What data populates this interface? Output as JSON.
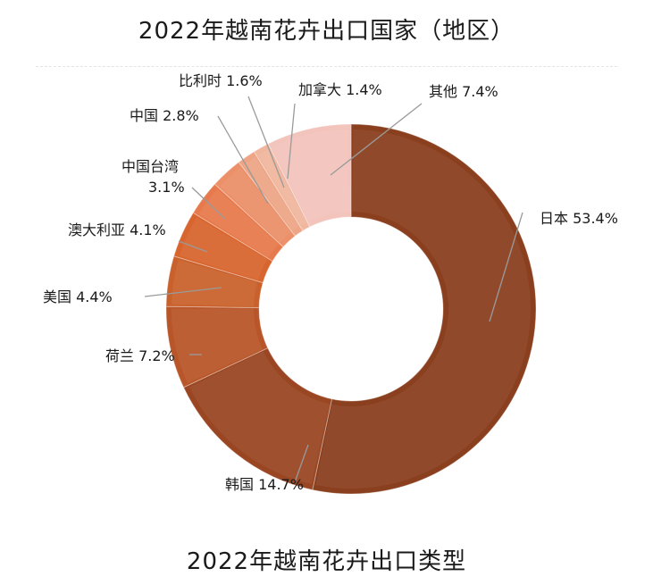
{
  "title": "2022年越南花卉出口国家（地区）",
  "subtitle": "2022年越南花卉出口类型",
  "chart_data": {
    "type": "pie",
    "donut": true,
    "unit": "%",
    "slices": [
      {
        "name": "日本",
        "value": 53.4,
        "label": "日本 53.4%",
        "color": "#8a3f1e"
      },
      {
        "name": "韩国",
        "value": 14.7,
        "label": "韩国 14.7%",
        "color": "#9a4622"
      },
      {
        "name": "荷兰",
        "value": 7.2,
        "label": "荷兰 7.2%",
        "color": "#b85629"
      },
      {
        "name": "美国",
        "value": 4.4,
        "label": "美国 4.4%",
        "color": "#c9612c"
      },
      {
        "name": "澳大利亚",
        "value": 4.1,
        "label": "澳大利亚 4.1%",
        "color": "#d8652e"
      },
      {
        "name": "中国台湾",
        "value": 3.1,
        "label_lines": [
          "中国台湾",
          "3.1%"
        ],
        "color": "#e77a4c"
      },
      {
        "name": "中国",
        "value": 2.8,
        "label": "中国 2.8%",
        "color": "#eb9069"
      },
      {
        "name": "比利时",
        "value": 1.6,
        "label": "比利时 1.6%",
        "color": "#eda585"
      },
      {
        "name": "加拿大",
        "value": 1.4,
        "label": "加拿大 1.4%",
        "color": "#f0b69e"
      },
      {
        "name": "其他",
        "value": 7.4,
        "label": "其他 7.4%",
        "color": "#f3c4bc"
      }
    ]
  }
}
